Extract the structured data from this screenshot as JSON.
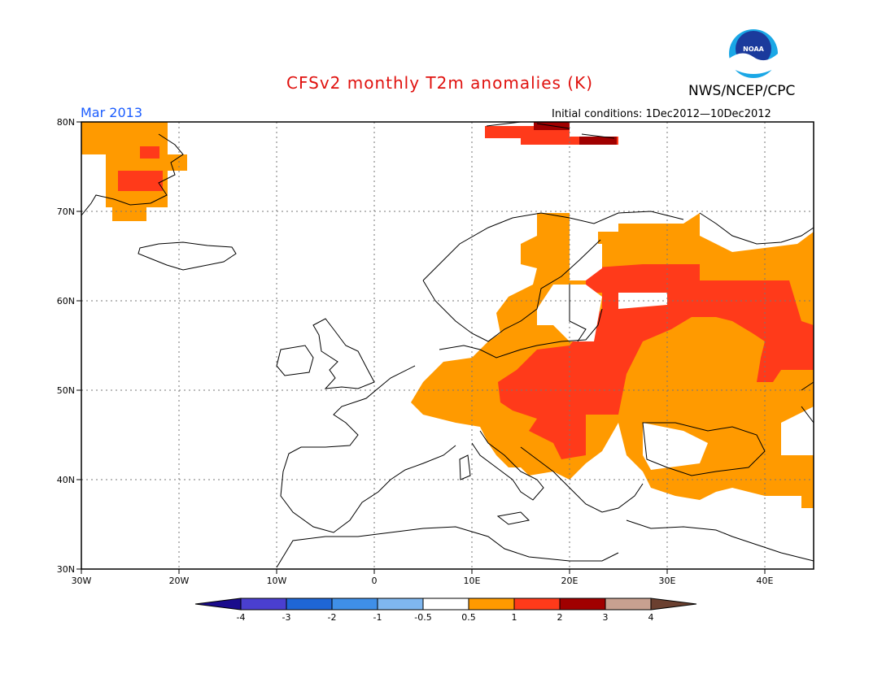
{
  "title": "CFSv2 monthly T2m anomalies (K)",
  "organization": "NWS/NCEP/CPC",
  "logo": {
    "text": "NOAA",
    "colors": {
      "outer": "#1aa7e6",
      "inner": "#1b3a9c",
      "bird": "#ffffff"
    }
  },
  "month_label": "Mar 2013",
  "initial_conditions": "Initial conditions: 1Dec2012—10Dec2012",
  "map": {
    "lon_range": [
      -30,
      45
    ],
    "lat_range": [
      30,
      80
    ],
    "lat_ticks": [
      "30N",
      "40N",
      "50N",
      "60N",
      "70N",
      "80N"
    ],
    "lon_ticks": [
      "30W",
      "20W",
      "10W",
      "0",
      "10E",
      "20E",
      "30E",
      "40E"
    ],
    "grid": "dotted"
  },
  "colorbar": {
    "labels": [
      "-4",
      "-3",
      "-2",
      "-1",
      "-0.5",
      "0.5",
      "1",
      "2",
      "3",
      "4"
    ],
    "colors": [
      "#1a0b8c",
      "#4a3fd0",
      "#1f66d6",
      "#3f8fe8",
      "#7fb7f0",
      "#ffffff",
      "#ff9a00",
      "#ff3a1a",
      "#a00000",
      "#c8a090",
      "#6b4030"
    ]
  }
}
